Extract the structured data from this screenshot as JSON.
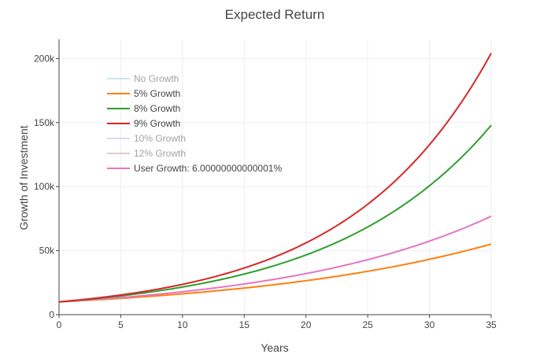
{
  "chart_data": {
    "type": "line",
    "title": "Expected Return",
    "xlabel": "Years",
    "ylabel": "Growth of Investment",
    "xlim": [
      0,
      35
    ],
    "ylim": [
      0,
      215000
    ],
    "x_ticks": [
      0,
      5,
      10,
      15,
      20,
      25,
      30,
      35
    ],
    "y_ticks": [
      {
        "value": 0,
        "label": "0"
      },
      {
        "value": 50000,
        "label": "50k"
      },
      {
        "value": 100000,
        "label": "100k"
      },
      {
        "value": 150000,
        "label": "150k"
      },
      {
        "value": 200000,
        "label": "200k"
      }
    ],
    "grid": true,
    "legend_placement": "top-left",
    "principal": 10000,
    "series": [
      {
        "name": "No Growth",
        "rate": 0.0,
        "color": "#9ecae1",
        "visible": false
      },
      {
        "name": "5% Growth",
        "rate": 0.05,
        "color": "#ff7f0e",
        "visible": true
      },
      {
        "name": "8% Growth",
        "rate": 0.08,
        "color": "#2ca02c",
        "visible": true
      },
      {
        "name": "9% Growth",
        "rate": 0.09,
        "color": "#d62728",
        "visible": true
      },
      {
        "name": "10% Growth",
        "rate": 0.1,
        "color": "#c5b0d5",
        "visible": false
      },
      {
        "name": "12% Growth",
        "rate": 0.12,
        "color": "#c49c94",
        "visible": false
      },
      {
        "name": "User Growth: 6.00000000000001%",
        "rate": 0.06,
        "color": "#e377c2",
        "visible": true
      }
    ]
  }
}
